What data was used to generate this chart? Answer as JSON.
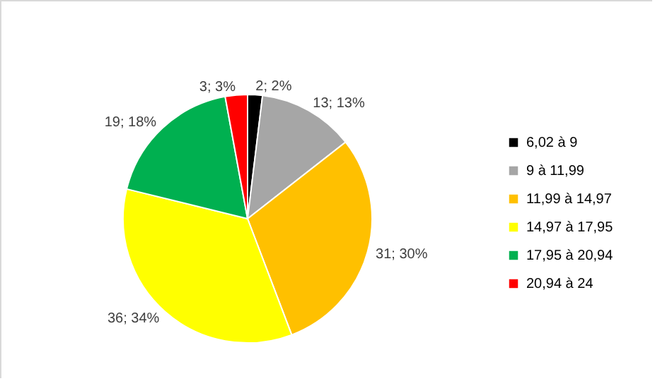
{
  "chart_data": {
    "type": "pie",
    "categories": [
      "6,02 à 9",
      "9 à 11,99",
      "11,99 à 14,97",
      "14,97 à 17,95",
      "17,95 à 20,94",
      "20,94 à 24"
    ],
    "values": [
      2,
      13,
      31,
      36,
      19,
      3
    ],
    "colors": [
      "#000000",
      "#a6a6a6",
      "#ffc000",
      "#ffff00",
      "#00b050",
      "#ff0000"
    ],
    "value_labels": [
      "2; 2%",
      "13; 13%",
      "31; 30%",
      "36; 34%",
      "19; 18%",
      "3; 3%"
    ],
    "legend": "right"
  }
}
